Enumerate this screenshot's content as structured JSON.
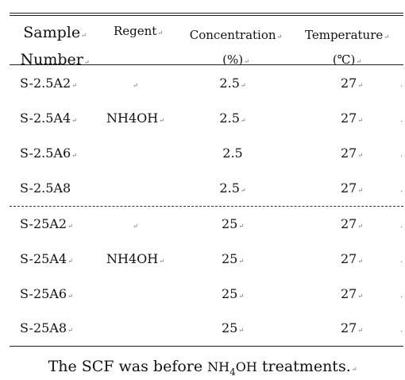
{
  "table": {
    "headers": {
      "sample_line1": "Sample",
      "sample_line2": "Number",
      "regent": "Regent",
      "concentration_line1": "Concentration",
      "concentration_line2": "(%)",
      "temperature_line1": "Temperature",
      "temperature_line2": "(℃)"
    },
    "group1": [
      {
        "sample": "S-2.5A2",
        "regent": "",
        "concentration": "2.5",
        "temperature": "27"
      },
      {
        "sample": "S-2.5A4",
        "regent": "NH4OH",
        "concentration": "2.5",
        "temperature": "27"
      },
      {
        "sample": "S-2.5A6",
        "regent": "",
        "concentration": "2.5",
        "temperature": "27"
      },
      {
        "sample": "S-2.5A8",
        "regent": "",
        "concentration": "2.5",
        "temperature": "27"
      }
    ],
    "group2": [
      {
        "sample": "S-25A2",
        "regent": "",
        "concentration": "25",
        "temperature": "27"
      },
      {
        "sample": "S-25A4",
        "regent": "NH4OH",
        "concentration": "25",
        "temperature": "27"
      },
      {
        "sample": "S-25A6",
        "regent": "",
        "concentration": "25",
        "temperature": "27"
      },
      {
        "sample": "S-25A8",
        "regent": "",
        "concentration": "25",
        "temperature": "27"
      }
    ]
  },
  "caption": {
    "before": "The SCF was before ",
    "nh": "NH",
    "sub": "4",
    "oh": "OH",
    "after": " treatments."
  }
}
